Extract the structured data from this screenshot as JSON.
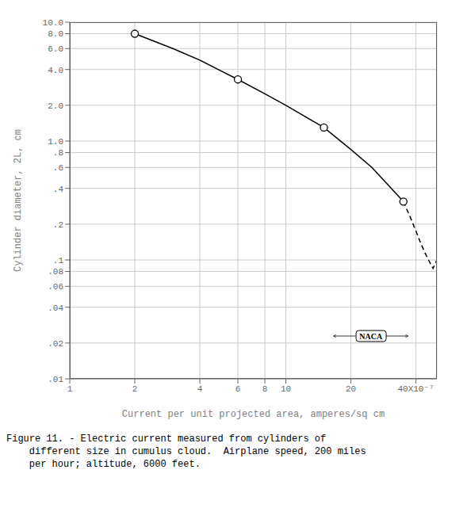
{
  "chart_data": {
    "type": "line",
    "xlabel": "Current per unit projected area, amperes/sq cm",
    "ylabel": "Cylinder diameter, 2L, cm",
    "log": true,
    "grid": true,
    "xlim": [
      1e-07,
      5e-06
    ],
    "ylim": [
      0.01,
      10.0
    ],
    "xticks": [
      {
        "value": 1e-07,
        "label": "1"
      },
      {
        "value": 2e-07,
        "label": "2"
      },
      {
        "value": 4e-07,
        "label": "4"
      },
      {
        "value": 6e-07,
        "label": "6"
      },
      {
        "value": 8e-07,
        "label": "8"
      },
      {
        "value": 1e-06,
        "label": "10"
      },
      {
        "value": 2e-06,
        "label": "20"
      },
      {
        "value": 4e-06,
        "label": "40X10⁻⁷"
      }
    ],
    "yticks": [
      {
        "value": 0.01,
        "label": ".01"
      },
      {
        "value": 0.02,
        "label": ".02"
      },
      {
        "value": 0.04,
        "label": ".04"
      },
      {
        "value": 0.06,
        "label": ".06"
      },
      {
        "value": 0.08,
        "label": ".08"
      },
      {
        "value": 0.1,
        "label": ".1"
      },
      {
        "value": 0.2,
        "label": ".2"
      },
      {
        "value": 0.4,
        "label": ".4"
      },
      {
        "value": 0.6,
        "label": ".6"
      },
      {
        "value": 0.8,
        "label": ".8"
      },
      {
        "value": 1.0,
        "label": "1.0"
      },
      {
        "value": 2.0,
        "label": "2.0"
      },
      {
        "value": 4.0,
        "label": "4.0"
      },
      {
        "value": 6.0,
        "label": "6.0"
      },
      {
        "value": 8.0,
        "label": "8.0"
      },
      {
        "value": 10.0,
        "label": "10.0"
      }
    ],
    "series": [
      {
        "type": "line",
        "line_style": "solid",
        "color": "black",
        "x": [
          2e-07,
          3e-07,
          4e-07,
          5e-07,
          6e-07,
          8e-07,
          1e-06,
          1.5e-06,
          2e-06,
          2.5e-06,
          3e-06,
          3.5e-06
        ],
        "values": [
          8.0,
          6.0,
          4.8,
          3.9,
          3.3,
          2.5,
          2.0,
          1.3,
          0.85,
          0.6,
          0.42,
          0.31
        ]
      },
      {
        "type": "line",
        "line_style": "dashed",
        "color": "black",
        "x": [
          3.5e-06,
          3.8e-06,
          4e-06,
          4.2e-06,
          4.4e-06,
          4.6e-06,
          4.8e-06,
          5e-06
        ],
        "values": [
          0.31,
          0.22,
          0.175,
          0.14,
          0.115,
          0.098,
          0.085,
          0.1
        ]
      },
      {
        "type": "scatter",
        "marker": "circle",
        "color": "black",
        "x": [
          2e-07,
          6e-07,
          1.5e-06,
          3.5e-06
        ],
        "values": [
          8.0,
          3.3,
          1.3,
          0.31
        ]
      }
    ],
    "annotations": [
      "NACA"
    ],
    "caption": "Figure 11. - Electric current measured from cylinders of\n    different size in cumulus cloud.  Airplane speed, 200 miles\n    per hour; altitude, 6000 feet."
  }
}
